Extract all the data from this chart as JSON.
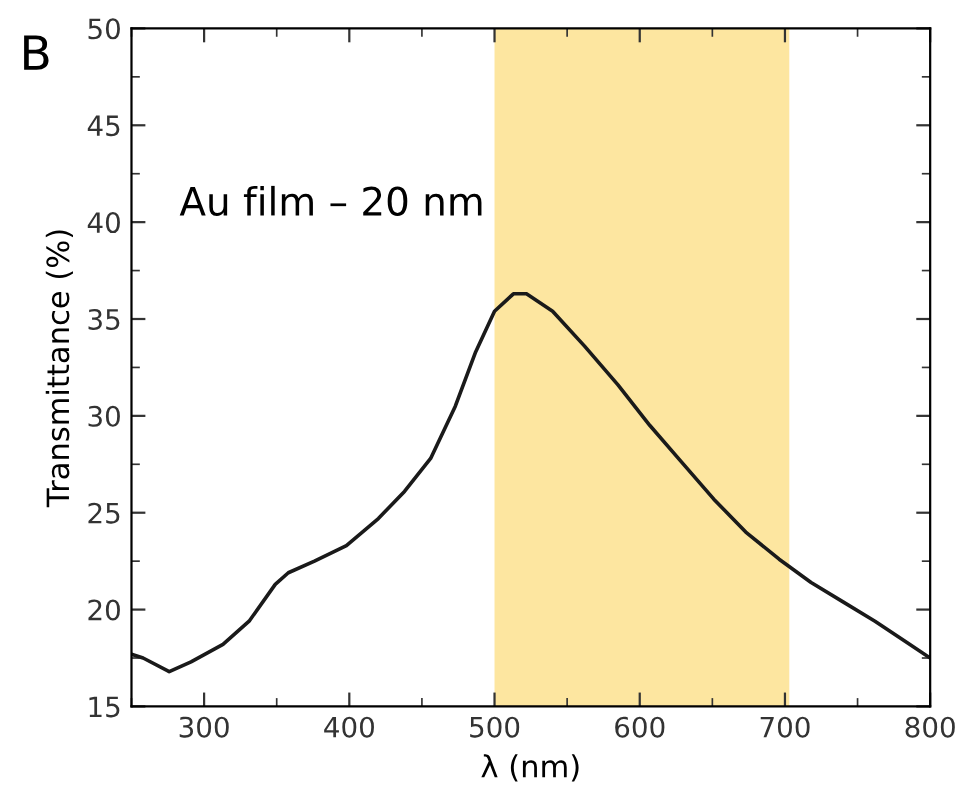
{
  "chart_data": {
    "type": "line",
    "xlabel": "λ (nm)",
    "ylabel": "Transmittance (%)",
    "annotations": [
      "B",
      "Au film – 20 nm"
    ],
    "x": [
      250,
      258,
      276,
      291,
      313,
      331,
      349,
      358,
      376,
      398,
      420,
      438,
      456,
      473,
      487,
      500,
      513,
      522,
      540,
      562,
      585,
      607,
      629,
      651,
      673,
      696,
      718,
      740,
      762,
      784,
      800
    ],
    "series": [
      {
        "color": "#1a1a1a",
        "values": [
          17.7,
          17.5,
          16.8,
          17.3,
          18.2,
          19.4,
          21.3,
          21.9,
          22.5,
          23.3,
          24.7,
          26.1,
          27.8,
          30.5,
          33.3,
          35.4,
          36.3,
          36.3,
          35.4,
          33.6,
          31.6,
          29.5,
          27.6,
          25.7,
          24.0,
          22.6,
          21.4,
          20.4,
          19.4,
          18.3,
          17.5
        ]
      }
    ],
    "xlim": [
      250,
      800
    ],
    "ylim": [
      15,
      50
    ],
    "xticks": [
      300,
      400,
      500,
      600,
      700,
      800
    ],
    "yticks": [
      15,
      20,
      25,
      30,
      35,
      40,
      45,
      50
    ],
    "bands": [
      {
        "axis": "x",
        "from": 500,
        "to": 703,
        "color": "#fde6a0"
      }
    ],
    "grid": false,
    "legend": false,
    "marker": "none",
    "line_style": "solid"
  }
}
